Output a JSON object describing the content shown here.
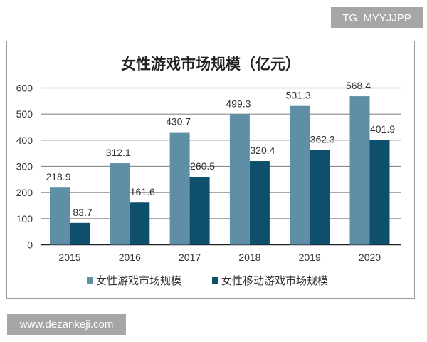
{
  "watermarks": {
    "top_right": "TG: MYYJJPP",
    "bottom_left": "www.dezankeji.com"
  },
  "chart_data": {
    "type": "bar",
    "title": "女性游戏市场规模（亿元）",
    "categories": [
      "2015",
      "2016",
      "2017",
      "2018",
      "2019",
      "2020"
    ],
    "series": [
      {
        "name": "女性游戏市场规模",
        "color": "#5e8fa6",
        "values": [
          218.9,
          312.1,
          430.7,
          499.3,
          531.3,
          568.4
        ]
      },
      {
        "name": "女性移动游戏市场规模",
        "color": "#0e4f6c",
        "values": [
          83.7,
          161.6,
          260.5,
          320.4,
          362.3,
          401.9
        ]
      }
    ],
    "ylim": [
      0,
      600
    ],
    "yticks": [
      0,
      100,
      200,
      300,
      400,
      500,
      600
    ],
    "grid": true,
    "legend": "bottom",
    "xlabel": "",
    "ylabel": ""
  }
}
